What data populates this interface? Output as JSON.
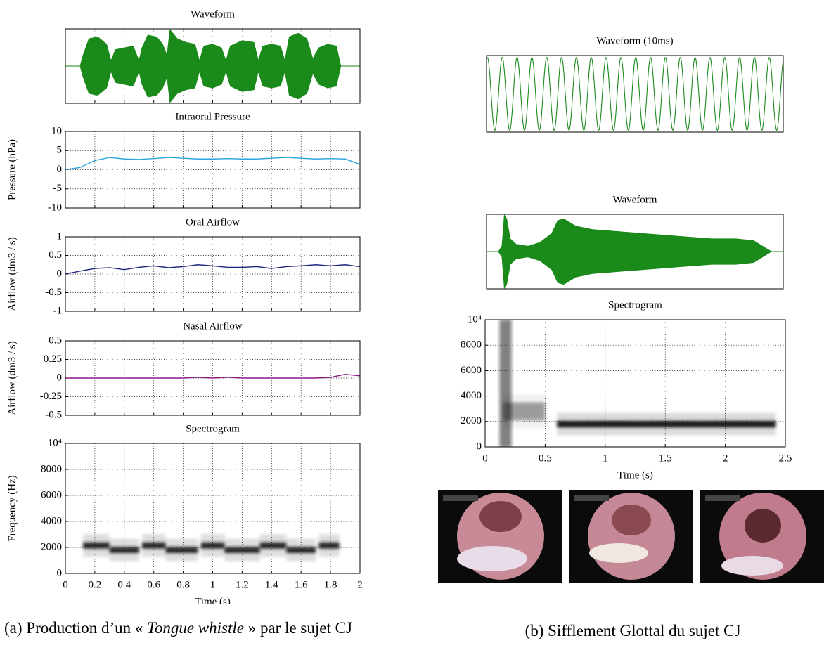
{
  "chart_data": [
    {
      "type": "envelope",
      "title": "Waveform",
      "color": "#1a8a1a",
      "xlim": [
        0,
        2
      ],
      "ylim": [
        -1,
        1
      ],
      "xticks": [
        0,
        0.2,
        0.4,
        0.6,
        0.8,
        1,
        1.2,
        1.4,
        1.6,
        1.8,
        2
      ],
      "grid": true,
      "x": [
        0,
        0.1,
        0.12,
        0.16,
        0.22,
        0.28,
        0.31,
        0.34,
        0.4,
        0.46,
        0.5,
        0.52,
        0.56,
        0.62,
        0.66,
        0.69,
        0.71,
        0.76,
        0.82,
        0.88,
        0.91,
        0.94,
        1.0,
        1.06,
        1.09,
        1.12,
        1.2,
        1.28,
        1.31,
        1.34,
        1.4,
        1.46,
        1.49,
        1.52,
        1.58,
        1.64,
        1.68,
        1.72,
        1.78,
        1.84,
        1.87,
        2.0
      ],
      "values": [
        0,
        0,
        0.3,
        0.75,
        0.8,
        0.6,
        0.15,
        0.45,
        0.5,
        0.55,
        0.15,
        0.5,
        0.85,
        0.8,
        0.6,
        0.3,
        1.0,
        0.75,
        0.65,
        0.6,
        0.15,
        0.55,
        0.6,
        0.5,
        0.15,
        0.55,
        0.7,
        0.65,
        0.15,
        0.55,
        0.6,
        0.55,
        0.15,
        0.8,
        0.9,
        0.75,
        0.2,
        0.5,
        0.6,
        0.55,
        0,
        0
      ]
    },
    {
      "type": "line",
      "title": "Intraoral Pressure",
      "ylabel": "Pressure (hPa)",
      "color": "#2aa6dc",
      "xlim": [
        0,
        2
      ],
      "ylim": [
        -10,
        10
      ],
      "xticks": [
        0,
        0.2,
        0.4,
        0.6,
        0.8,
        1,
        1.2,
        1.4,
        1.6,
        1.8,
        2
      ],
      "yticks": [
        -10,
        -5,
        0,
        5,
        10
      ],
      "grid": true,
      "x": [
        0,
        0.1,
        0.2,
        0.3,
        0.4,
        0.5,
        0.6,
        0.7,
        0.8,
        0.9,
        1,
        1.1,
        1.2,
        1.3,
        1.4,
        1.5,
        1.6,
        1.7,
        1.8,
        1.9,
        2
      ],
      "values": [
        0,
        0.6,
        2.4,
        3.2,
        2.8,
        2.7,
        2.9,
        3.2,
        3.0,
        2.8,
        2.8,
        2.9,
        2.8,
        2.8,
        3.0,
        3.2,
        3.0,
        2.8,
        2.9,
        2.8,
        1.4
      ]
    },
    {
      "type": "line",
      "title": "Oral Airflow",
      "ylabel": "Airflow (dm3 / s)",
      "color": "#1c2680",
      "xlim": [
        0,
        2
      ],
      "ylim": [
        -1,
        1
      ],
      "xticks": [
        0,
        0.2,
        0.4,
        0.6,
        0.8,
        1,
        1.2,
        1.4,
        1.6,
        1.8,
        2
      ],
      "yticks": [
        -1,
        -0.5,
        0,
        0.5,
        1
      ],
      "grid": true,
      "x": [
        0,
        0.1,
        0.2,
        0.3,
        0.4,
        0.5,
        0.6,
        0.7,
        0.8,
        0.9,
        1,
        1.1,
        1.2,
        1.3,
        1.4,
        1.5,
        1.6,
        1.7,
        1.8,
        1.9,
        2
      ],
      "values": [
        0,
        0.08,
        0.15,
        0.17,
        0.12,
        0.18,
        0.22,
        0.17,
        0.2,
        0.25,
        0.22,
        0.18,
        0.18,
        0.2,
        0.15,
        0.2,
        0.22,
        0.25,
        0.22,
        0.25,
        0.2
      ]
    },
    {
      "type": "line",
      "title": "Nasal Airflow",
      "ylabel": "Airflow (dm3 / s)",
      "color": "#8a1a8a",
      "xlim": [
        0,
        2
      ],
      "ylim": [
        -0.5,
        0.5
      ],
      "xticks": [
        0,
        0.2,
        0.4,
        0.6,
        0.8,
        1,
        1.2,
        1.4,
        1.6,
        1.8,
        2
      ],
      "yticks": [
        -0.5,
        -0.25,
        0,
        0.25,
        0.5
      ],
      "grid": true,
      "x": [
        0,
        0.1,
        0.2,
        0.3,
        0.4,
        0.5,
        0.6,
        0.7,
        0.8,
        0.9,
        1,
        1.1,
        1.2,
        1.3,
        1.4,
        1.5,
        1.6,
        1.7,
        1.8,
        1.9,
        2
      ],
      "values": [
        0,
        0,
        0,
        0,
        0,
        0,
        0,
        0,
        0,
        0.01,
        0,
        0.01,
        0,
        0,
        0,
        0,
        0,
        0,
        0.01,
        0.05,
        0.03
      ]
    },
    {
      "type": "spectrogram",
      "title": "Spectrogram",
      "ylabel": "Frequency (Hz)",
      "xlabel": "Time (s)",
      "xlim": [
        0,
        2
      ],
      "ylim": [
        0,
        10000
      ],
      "xticks": [
        0,
        0.2,
        0.4,
        0.6,
        0.8,
        1,
        1.2,
        1.4,
        1.6,
        1.8,
        2
      ],
      "show_xtick_labels": true,
      "yticks": [
        0,
        2000,
        4000,
        6000,
        8000,
        {
          "value": 10000,
          "label": "10⁴"
        }
      ],
      "grid": true,
      "bands": [
        {
          "start": 0.12,
          "end": 0.3,
          "freq": 2150,
          "bandwidth": 450,
          "intensity": 0.85
        },
        {
          "start": 0.3,
          "end": 0.5,
          "freq": 1800,
          "bandwidth": 450,
          "intensity": 0.85
        },
        {
          "start": 0.52,
          "end": 0.68,
          "freq": 2150,
          "bandwidth": 450,
          "intensity": 0.85
        },
        {
          "start": 0.68,
          "end": 0.9,
          "freq": 1800,
          "bandwidth": 450,
          "intensity": 0.85
        },
        {
          "start": 0.92,
          "end": 1.08,
          "freq": 2150,
          "bandwidth": 450,
          "intensity": 0.85
        },
        {
          "start": 1.08,
          "end": 1.32,
          "freq": 1800,
          "bandwidth": 450,
          "intensity": 0.85
        },
        {
          "start": 1.32,
          "end": 1.5,
          "freq": 2150,
          "bandwidth": 450,
          "intensity": 0.85
        },
        {
          "start": 1.5,
          "end": 1.7,
          "freq": 1800,
          "bandwidth": 450,
          "intensity": 0.85
        },
        {
          "start": 1.72,
          "end": 1.86,
          "freq": 2150,
          "bandwidth": 450,
          "intensity": 0.85
        }
      ]
    },
    {
      "type": "oscillation",
      "title": "Waveform (10ms)",
      "color": "#1a8a1a",
      "ylim": [
        -1,
        1
      ],
      "cycles": 20,
      "amplitude": 0.95,
      "grid": false
    },
    {
      "type": "envelope",
      "title": "Waveform",
      "color": "#1a8a1a",
      "xlim": [
        0,
        2.5
      ],
      "ylim": [
        -1,
        1
      ],
      "grid": false,
      "x": [
        0,
        0.1,
        0.13,
        0.15,
        0.17,
        0.2,
        0.25,
        0.35,
        0.45,
        0.55,
        0.6,
        0.65,
        0.75,
        0.9,
        1.1,
        1.3,
        1.5,
        1.7,
        1.9,
        2.1,
        2.25,
        2.35,
        2.4,
        2.5
      ],
      "values": [
        0,
        0,
        0.15,
        1.0,
        0.9,
        0.35,
        0.2,
        0.15,
        0.25,
        0.5,
        0.85,
        0.9,
        0.7,
        0.6,
        0.55,
        0.5,
        0.45,
        0.4,
        0.35,
        0.35,
        0.3,
        0.1,
        0,
        0
      ]
    },
    {
      "type": "spectrogram",
      "title": "Spectrogram",
      "xlabel": "Time (s)",
      "xlim": [
        0,
        2.5
      ],
      "ylim": [
        0,
        10000
      ],
      "xticks": [
        0,
        0.5,
        1,
        1.5,
        2,
        2.5
      ],
      "show_xtick_labels": true,
      "yticks": [
        0,
        2000,
        4000,
        6000,
        8000,
        {
          "value": 10000,
          "label": "10⁴"
        }
      ],
      "grid": true,
      "bands": [
        {
          "start": 0.12,
          "end": 0.22,
          "freq": 5000,
          "bandwidth": 10000,
          "intensity": 0.45
        },
        {
          "start": 0.15,
          "end": 0.5,
          "freq": 2800,
          "bandwidth": 1400,
          "intensity": 0.35
        },
        {
          "start": 0.6,
          "end": 2.42,
          "freq": 1800,
          "bandwidth": 500,
          "intensity": 0.9
        }
      ]
    }
  ],
  "captions": {
    "a": {
      "prefix": "(a) Production d’un « ",
      "emphasis": "Tongue whistle",
      "suffix": " » par le sujet CJ"
    },
    "b": "(b) Sifflement Glottal du sujet CJ"
  }
}
